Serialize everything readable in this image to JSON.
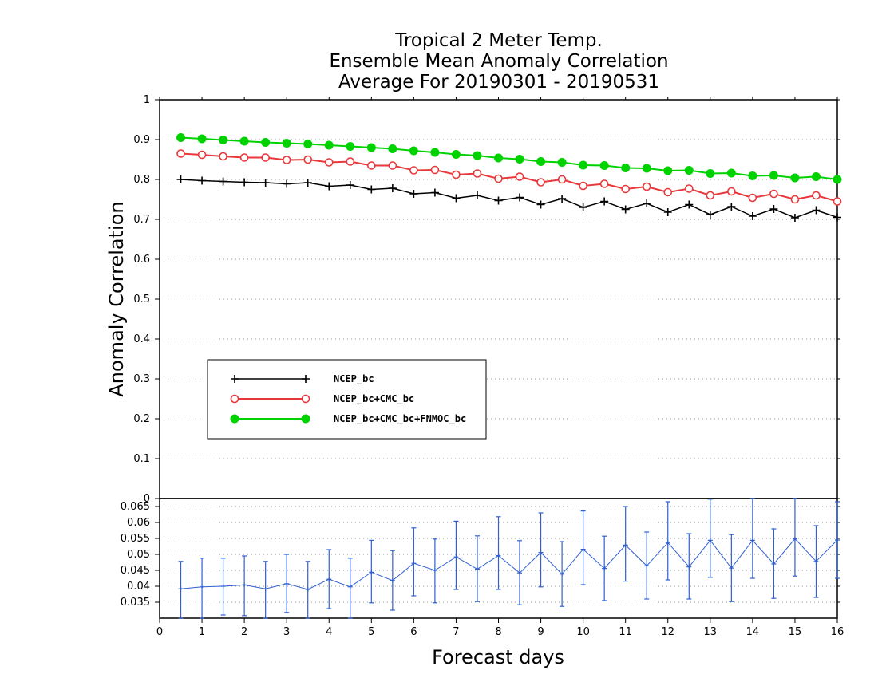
{
  "chart_data": [
    {
      "type": "line",
      "title": [
        "Tropical 2 Meter Temp.",
        "Ensemble Mean Anomaly Correlation",
        "Average For 20190301 - 20190531"
      ],
      "ylabel": "Anomaly Correlation",
      "xlabel": "Forecast days",
      "xlim": [
        0,
        16
      ],
      "ylim": [
        0,
        1
      ],
      "yticks": [
        "0",
        "0.1",
        "0.2",
        "0.3",
        "0.4",
        "0.5",
        "0.6",
        "0.7",
        "0.8",
        "0.9",
        "1"
      ],
      "xticks": [
        "0",
        "1",
        "2",
        "3",
        "4",
        "5",
        "6",
        "7",
        "8",
        "9",
        "10",
        "11",
        "12",
        "13",
        "14",
        "15",
        "16"
      ],
      "grid": true,
      "legend_position": "lower-left",
      "x": [
        0.5,
        1,
        1.5,
        2,
        2.5,
        3,
        3.5,
        4,
        4.5,
        5,
        5.5,
        6,
        6.5,
        7,
        7.5,
        8,
        8.5,
        9,
        9.5,
        10,
        10.5,
        11,
        11.5,
        12,
        12.5,
        13,
        13.5,
        14,
        14.5,
        15,
        15.5,
        16
      ],
      "series": [
        {
          "name": "NCEP_bc",
          "color": "#000000",
          "marker": "plus",
          "values": [
            0.8,
            0.797,
            0.795,
            0.793,
            0.792,
            0.789,
            0.792,
            0.783,
            0.786,
            0.775,
            0.778,
            0.764,
            0.767,
            0.753,
            0.76,
            0.747,
            0.755,
            0.737,
            0.752,
            0.73,
            0.745,
            0.725,
            0.74,
            0.718,
            0.737,
            0.712,
            0.732,
            0.708,
            0.726,
            0.704,
            0.723,
            0.705
          ]
        },
        {
          "name": "NCEP_bc+CMC_bc",
          "color": "#e8383b",
          "marker": "open-circle",
          "values": [
            0.865,
            0.862,
            0.858,
            0.855,
            0.855,
            0.849,
            0.85,
            0.843,
            0.845,
            0.835,
            0.835,
            0.823,
            0.824,
            0.812,
            0.815,
            0.802,
            0.807,
            0.793,
            0.8,
            0.784,
            0.789,
            0.776,
            0.782,
            0.768,
            0.777,
            0.76,
            0.77,
            0.754,
            0.764,
            0.75,
            0.76,
            0.745
          ]
        },
        {
          "name": "NCEP_bc+CMC_bc+FNMOC_bc",
          "color": "#00d200",
          "marker": "filled-circle",
          "values": [
            0.905,
            0.902,
            0.899,
            0.896,
            0.893,
            0.891,
            0.889,
            0.886,
            0.883,
            0.88,
            0.877,
            0.872,
            0.868,
            0.863,
            0.86,
            0.854,
            0.851,
            0.845,
            0.843,
            0.836,
            0.835,
            0.829,
            0.828,
            0.822,
            0.823,
            0.815,
            0.816,
            0.809,
            0.81,
            0.804,
            0.807,
            0.8
          ]
        }
      ]
    },
    {
      "type": "line",
      "ylim": [
        0.03,
        0.0675
      ],
      "yticks": [
        "0.035",
        "0.04",
        "0.045",
        "0.05",
        "0.055",
        "0.06",
        "0.065"
      ],
      "xlim": [
        0,
        16
      ],
      "grid": true,
      "series": [
        {
          "color": "#2f5fd0",
          "marker": "error-bar",
          "values": [
            0.0392,
            0.0398,
            0.04,
            0.0404,
            0.0392,
            0.0408,
            0.039,
            0.0422,
            0.0398,
            0.0444,
            0.0418,
            0.0472,
            0.045,
            0.0492,
            0.0454,
            0.0496,
            0.0442,
            0.0506,
            0.0438,
            0.0516,
            0.0456,
            0.0529,
            0.0464,
            0.0537,
            0.0461,
            0.0544,
            0.0457,
            0.0544,
            0.047,
            0.0549,
            0.0478,
            0.0545
          ],
          "lower": [
            0.03,
            0.03,
            0.031,
            0.0308,
            0.03,
            0.0318,
            0.03,
            0.033,
            0.03,
            0.0348,
            0.0325,
            0.037,
            0.0348,
            0.039,
            0.0352,
            0.039,
            0.0342,
            0.0398,
            0.0337,
            0.0405,
            0.0355,
            0.0416,
            0.036,
            0.042,
            0.036,
            0.0428,
            0.0352,
            0.0425,
            0.0362,
            0.0432,
            0.0365,
            0.0425
          ],
          "upper": [
            0.0478,
            0.0488,
            0.0488,
            0.0495,
            0.0478,
            0.05,
            0.0478,
            0.0515,
            0.0488,
            0.0544,
            0.0512,
            0.0583,
            0.0548,
            0.0604,
            0.0558,
            0.0618,
            0.0543,
            0.063,
            0.054,
            0.0636,
            0.0557,
            0.065,
            0.057,
            0.0665,
            0.0565,
            0.0673,
            0.0562,
            0.0677,
            0.058,
            0.0675,
            0.059,
            0.0665
          ]
        }
      ]
    }
  ]
}
